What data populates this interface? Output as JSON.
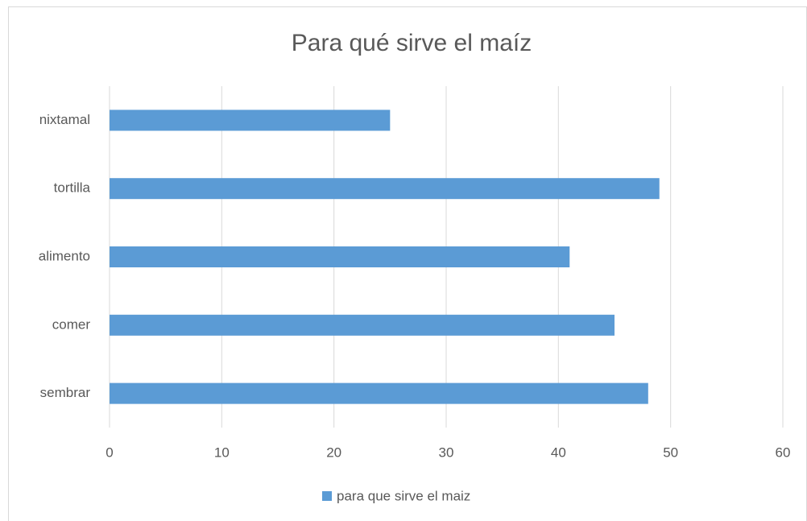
{
  "chart_data": {
    "type": "bar",
    "orientation": "horizontal",
    "title": "Para qué sirve el maíz",
    "categories": [
      "sembrar",
      "comer",
      "alimento",
      "tortilla",
      "nixtamal"
    ],
    "series": [
      {
        "name": "para que sirve el maiz",
        "color": "#5b9bd5",
        "values": [
          48,
          45,
          41,
          49,
          25
        ]
      }
    ],
    "xlim": [
      0,
      60
    ],
    "xticks": [
      0,
      10,
      20,
      30,
      40,
      50,
      60
    ],
    "grid": true,
    "legend": "bottom"
  }
}
